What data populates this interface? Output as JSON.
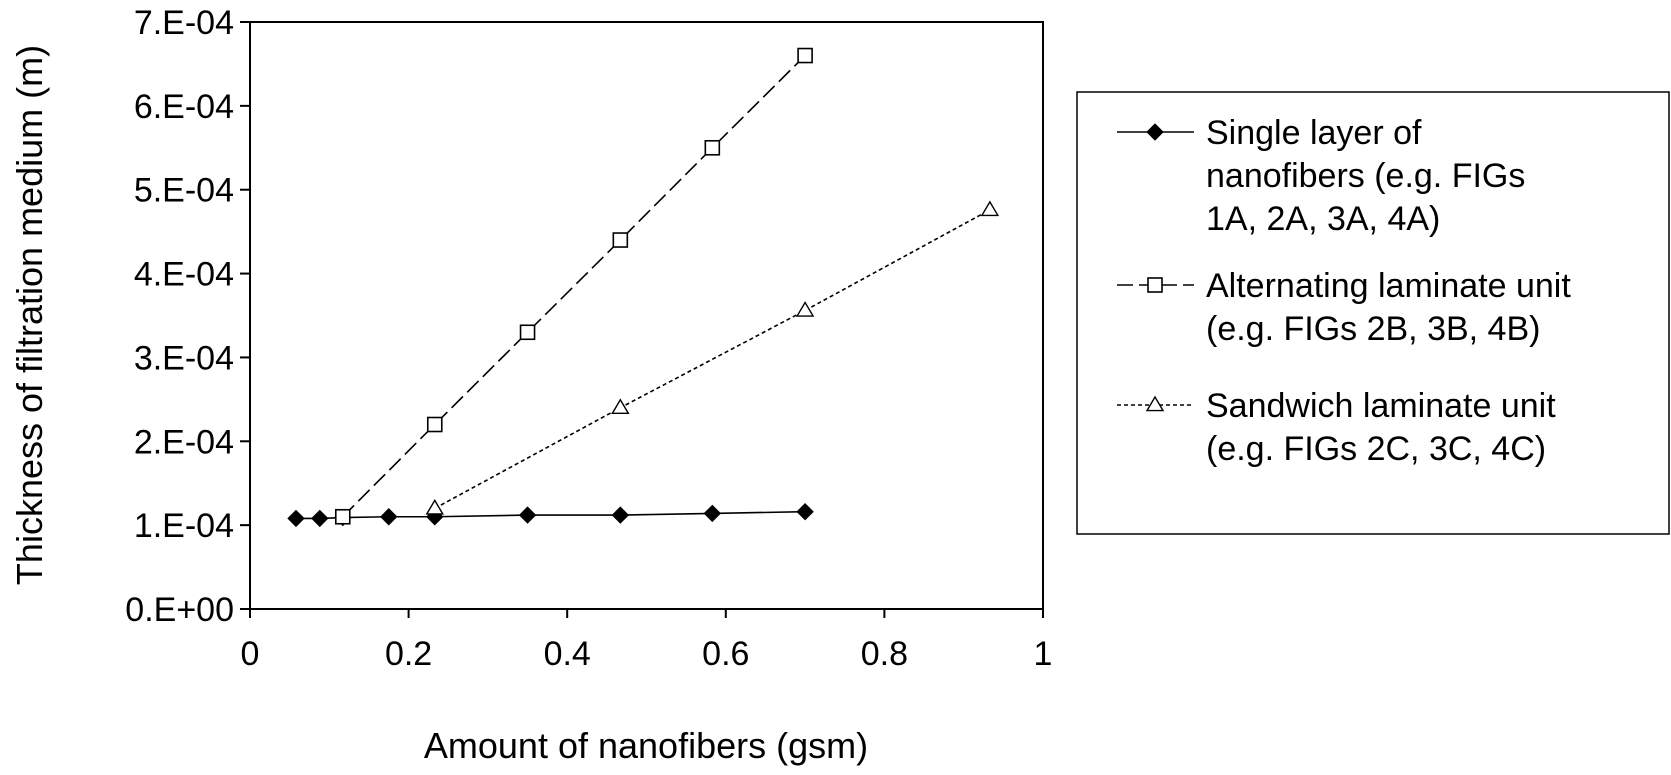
{
  "chart_data": {
    "type": "line",
    "xlabel": "Amount of nanofibers (gsm)",
    "ylabel": "Thickness of filtration medium (m)",
    "xlim": [
      0,
      1
    ],
    "ylim": [
      0,
      0.0007
    ],
    "x_ticks": [
      "0",
      "0.2",
      "0.4",
      "0.6",
      "0.8",
      "1"
    ],
    "y_ticks": [
      "0.E+00",
      "1.E-04",
      "2.E-04",
      "3.E-04",
      "4.E-04",
      "5.E-04",
      "6.E-04",
      "7.E-04"
    ],
    "grid": false,
    "legend_position": "right",
    "series": [
      {
        "name_lines": [
          "Single layer of",
          "nanofibers (e.g. FIGs",
          "1A, 2A, 3A, 4A)"
        ],
        "marker": "filled-diamond",
        "line": "solid",
        "x": [
          0.058,
          0.088,
          0.117,
          0.175,
          0.233,
          0.35,
          0.467,
          0.583,
          0.7
        ],
        "y": [
          0.000108,
          0.000108,
          0.000109,
          0.00011,
          0.00011,
          0.000112,
          0.000112,
          0.000114,
          0.000116
        ]
      },
      {
        "name_lines": [
          "Alternating laminate unit",
          "(e.g. FIGs 2B, 3B, 4B)"
        ],
        "marker": "open-square",
        "line": "dashed",
        "x": [
          0.117,
          0.233,
          0.35,
          0.467,
          0.583,
          0.7
        ],
        "y": [
          0.00011,
          0.00022,
          0.00033,
          0.00044,
          0.00055,
          0.00066
        ]
      },
      {
        "name_lines": [
          "Sandwich laminate unit",
          "(e.g. FIGs 2C, 3C, 4C)"
        ],
        "marker": "open-triangle",
        "line": "dotted",
        "x": [
          0.233,
          0.467,
          0.7,
          0.933
        ],
        "y": [
          0.00012,
          0.00024,
          0.000356,
          0.000476
        ]
      }
    ]
  }
}
